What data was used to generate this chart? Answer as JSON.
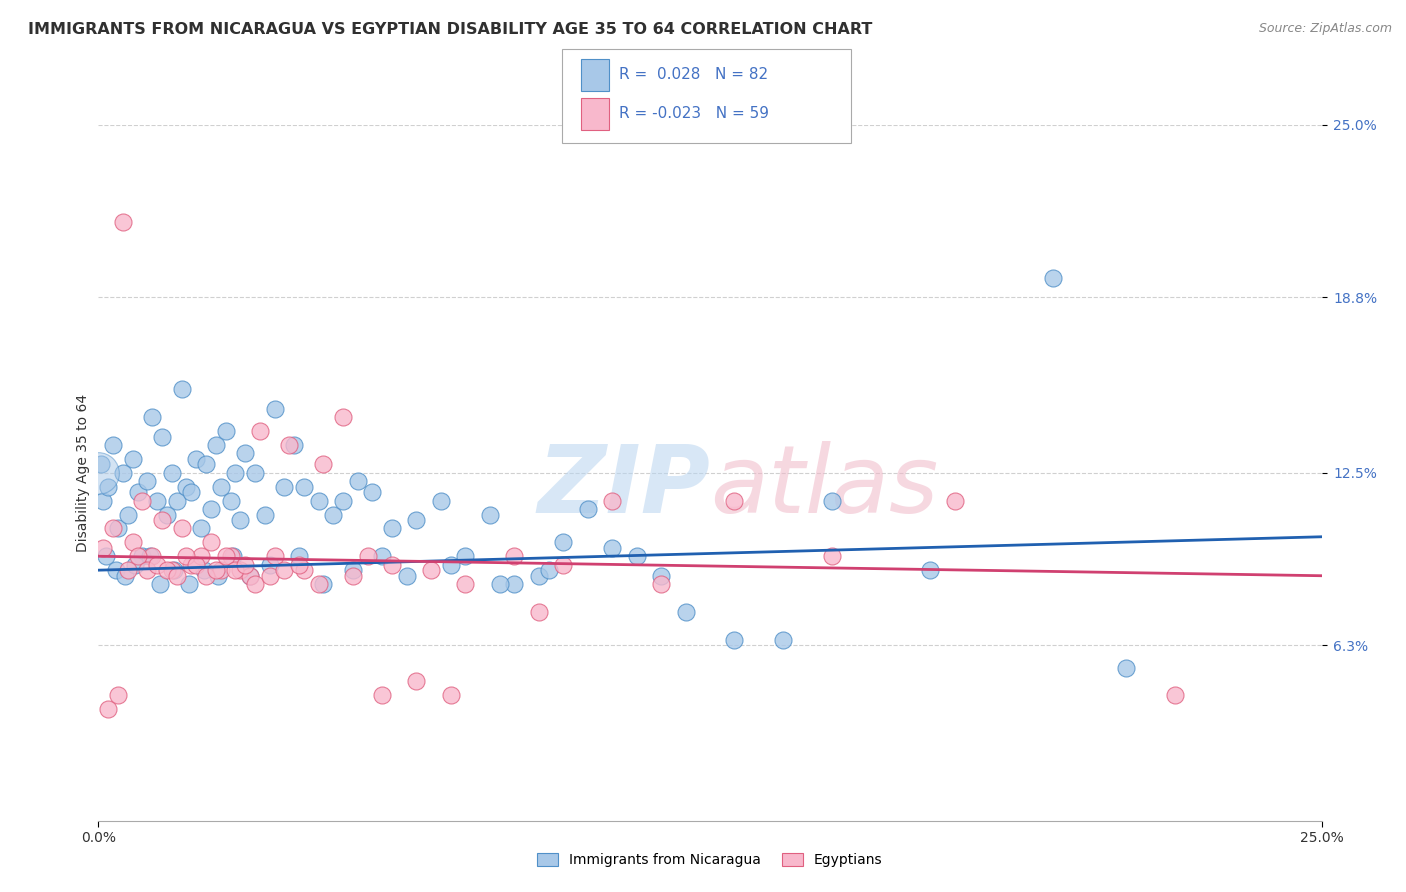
{
  "title": "IMMIGRANTS FROM NICARAGUA VS EGYPTIAN DISABILITY AGE 35 TO 64 CORRELATION CHART",
  "source": "Source: ZipAtlas.com",
  "ylabel": "Disability Age 35 to 64",
  "ytick_values": [
    6.3,
    12.5,
    18.8,
    25.0
  ],
  "xlim": [
    0.0,
    25.0
  ],
  "ylim": [
    0.0,
    25.0
  ],
  "blue_scatter_x": [
    0.05,
    0.1,
    0.2,
    0.3,
    0.4,
    0.5,
    0.6,
    0.7,
    0.8,
    0.9,
    1.0,
    1.1,
    1.2,
    1.3,
    1.4,
    1.5,
    1.6,
    1.7,
    1.8,
    1.9,
    2.0,
    2.1,
    2.2,
    2.3,
    2.4,
    2.5,
    2.6,
    2.7,
    2.8,
    2.9,
    3.0,
    3.2,
    3.4,
    3.6,
    3.8,
    4.0,
    4.2,
    4.5,
    4.8,
    5.0,
    5.3,
    5.6,
    6.0,
    6.5,
    7.0,
    7.5,
    8.0,
    8.5,
    9.0,
    9.5,
    10.0,
    10.5,
    11.0,
    12.0,
    13.0,
    14.0,
    15.0,
    17.0,
    19.5,
    21.0,
    0.15,
    0.35,
    0.55,
    0.75,
    1.05,
    1.25,
    1.55,
    1.85,
    2.15,
    2.45,
    2.75,
    3.1,
    3.5,
    4.1,
    4.6,
    5.2,
    5.8,
    6.3,
    7.2,
    8.2,
    9.2,
    11.5
  ],
  "blue_scatter_y": [
    12.8,
    11.5,
    12.0,
    13.5,
    10.5,
    12.5,
    11.0,
    13.0,
    11.8,
    9.5,
    12.2,
    14.5,
    11.5,
    13.8,
    11.0,
    12.5,
    11.5,
    15.5,
    12.0,
    11.8,
    13.0,
    10.5,
    12.8,
    11.2,
    13.5,
    12.0,
    14.0,
    11.5,
    12.5,
    10.8,
    13.2,
    12.5,
    11.0,
    14.8,
    12.0,
    13.5,
    12.0,
    11.5,
    11.0,
    11.5,
    12.2,
    11.8,
    10.5,
    10.8,
    11.5,
    9.5,
    11.0,
    8.5,
    8.8,
    10.0,
    11.2,
    9.8,
    9.5,
    7.5,
    6.5,
    6.5,
    11.5,
    9.0,
    19.5,
    5.5,
    9.5,
    9.0,
    8.8,
    9.2,
    9.5,
    8.5,
    9.0,
    8.5,
    9.0,
    8.8,
    9.5,
    8.8,
    9.2,
    9.5,
    8.5,
    9.0,
    9.5,
    8.8,
    9.2,
    8.5,
    9.0,
    8.8
  ],
  "pink_scatter_x": [
    0.1,
    0.3,
    0.5,
    0.7,
    0.9,
    1.1,
    1.3,
    1.5,
    1.7,
    1.9,
    2.1,
    2.3,
    2.5,
    2.7,
    2.9,
    3.1,
    3.3,
    3.6,
    3.9,
    4.2,
    4.6,
    5.0,
    5.5,
    6.0,
    6.8,
    7.5,
    8.5,
    9.5,
    10.5,
    11.5,
    13.0,
    15.0,
    17.5,
    22.0,
    0.2,
    0.4,
    0.6,
    0.8,
    1.0,
    1.2,
    1.4,
    1.6,
    1.8,
    2.0,
    2.2,
    2.4,
    2.6,
    2.8,
    3.0,
    3.2,
    3.5,
    3.8,
    4.1,
    4.5,
    5.2,
    5.8,
    6.5,
    7.2,
    9.0
  ],
  "pink_scatter_y": [
    9.8,
    10.5,
    21.5,
    10.0,
    11.5,
    9.5,
    10.8,
    9.0,
    10.5,
    9.2,
    9.5,
    10.0,
    9.0,
    9.5,
    9.0,
    8.8,
    14.0,
    9.5,
    13.5,
    9.0,
    12.8,
    14.5,
    9.5,
    9.2,
    9.0,
    8.5,
    9.5,
    9.2,
    11.5,
    8.5,
    11.5,
    9.5,
    11.5,
    4.5,
    4.0,
    4.5,
    9.0,
    9.5,
    9.0,
    9.2,
    9.0,
    8.8,
    9.5,
    9.2,
    8.8,
    9.0,
    9.5,
    9.0,
    9.2,
    8.5,
    8.8,
    9.0,
    9.2,
    8.5,
    8.8,
    4.5,
    5.0,
    4.5,
    7.5
  ],
  "blue_line_x": [
    0.0,
    25.0
  ],
  "blue_line_y": [
    9.0,
    10.2
  ],
  "pink_line_x": [
    0.0,
    25.0
  ],
  "pink_line_y": [
    9.5,
    8.8
  ],
  "blue_dot_color": "#a8c8e8",
  "blue_edge_color": "#5090c8",
  "pink_dot_color": "#f8b8cc",
  "pink_edge_color": "#e06080",
  "blue_line_color": "#2060b0",
  "pink_line_color": "#d04070",
  "background_color": "#ffffff",
  "grid_color": "#d0d0d0",
  "watermark": "ZIPatlas",
  "title_color": "#303030",
  "source_color": "#888888",
  "tick_color": "#4472c4",
  "title_fontsize": 11.5,
  "source_fontsize": 9,
  "ylabel_fontsize": 10,
  "tick_fontsize": 10,
  "legend_R_blue": "R =  0.028",
  "legend_N_blue": "N = 82",
  "legend_R_pink": "R = -0.023",
  "legend_N_pink": "N = 59",
  "legend_label_blue": "Immigrants from Nicaragua",
  "legend_label_pink": "Egyptians"
}
